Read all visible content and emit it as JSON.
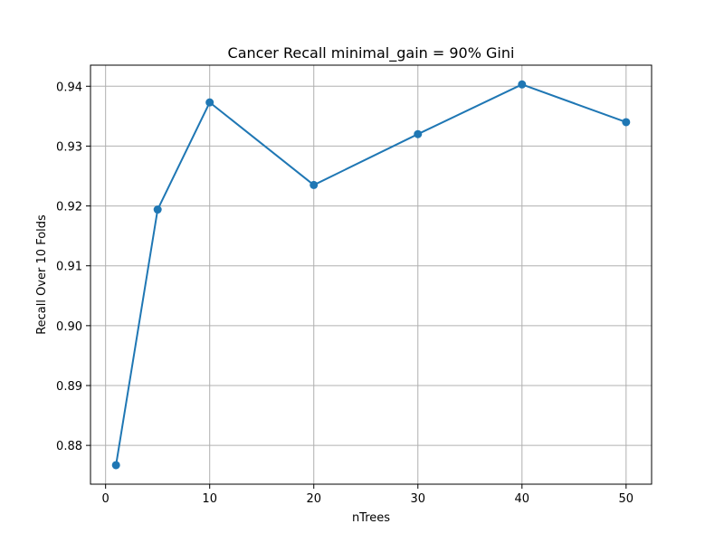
{
  "chart_data": {
    "type": "line",
    "title": "Cancer Recall minimal_gain = 90% Gini",
    "xlabel": "nTrees",
    "ylabel": "Recall Over 10 Folds",
    "x": [
      1,
      5,
      10,
      20,
      30,
      40,
      50
    ],
    "series": [
      {
        "values": [
          0.8767,
          0.9194,
          0.9373,
          0.9235,
          0.932,
          0.9403,
          0.934
        ],
        "color": "#1f77b4",
        "marker": "circle"
      }
    ],
    "xlim": [
      -1.45,
      52.45
    ],
    "ylim": [
      0.87352,
      0.94352
    ],
    "xticks": [
      0,
      10,
      20,
      30,
      40,
      50
    ],
    "xtick_labels": [
      "0",
      "10",
      "20",
      "30",
      "40",
      "50"
    ],
    "yticks": [
      0.88,
      0.89,
      0.9,
      0.91,
      0.92,
      0.93,
      0.94
    ],
    "ytick_labels": [
      "0.88",
      "0.89",
      "0.90",
      "0.91",
      "0.92",
      "0.93",
      "0.94"
    ],
    "grid": true,
    "grid_color": "#b0b0b0"
  }
}
